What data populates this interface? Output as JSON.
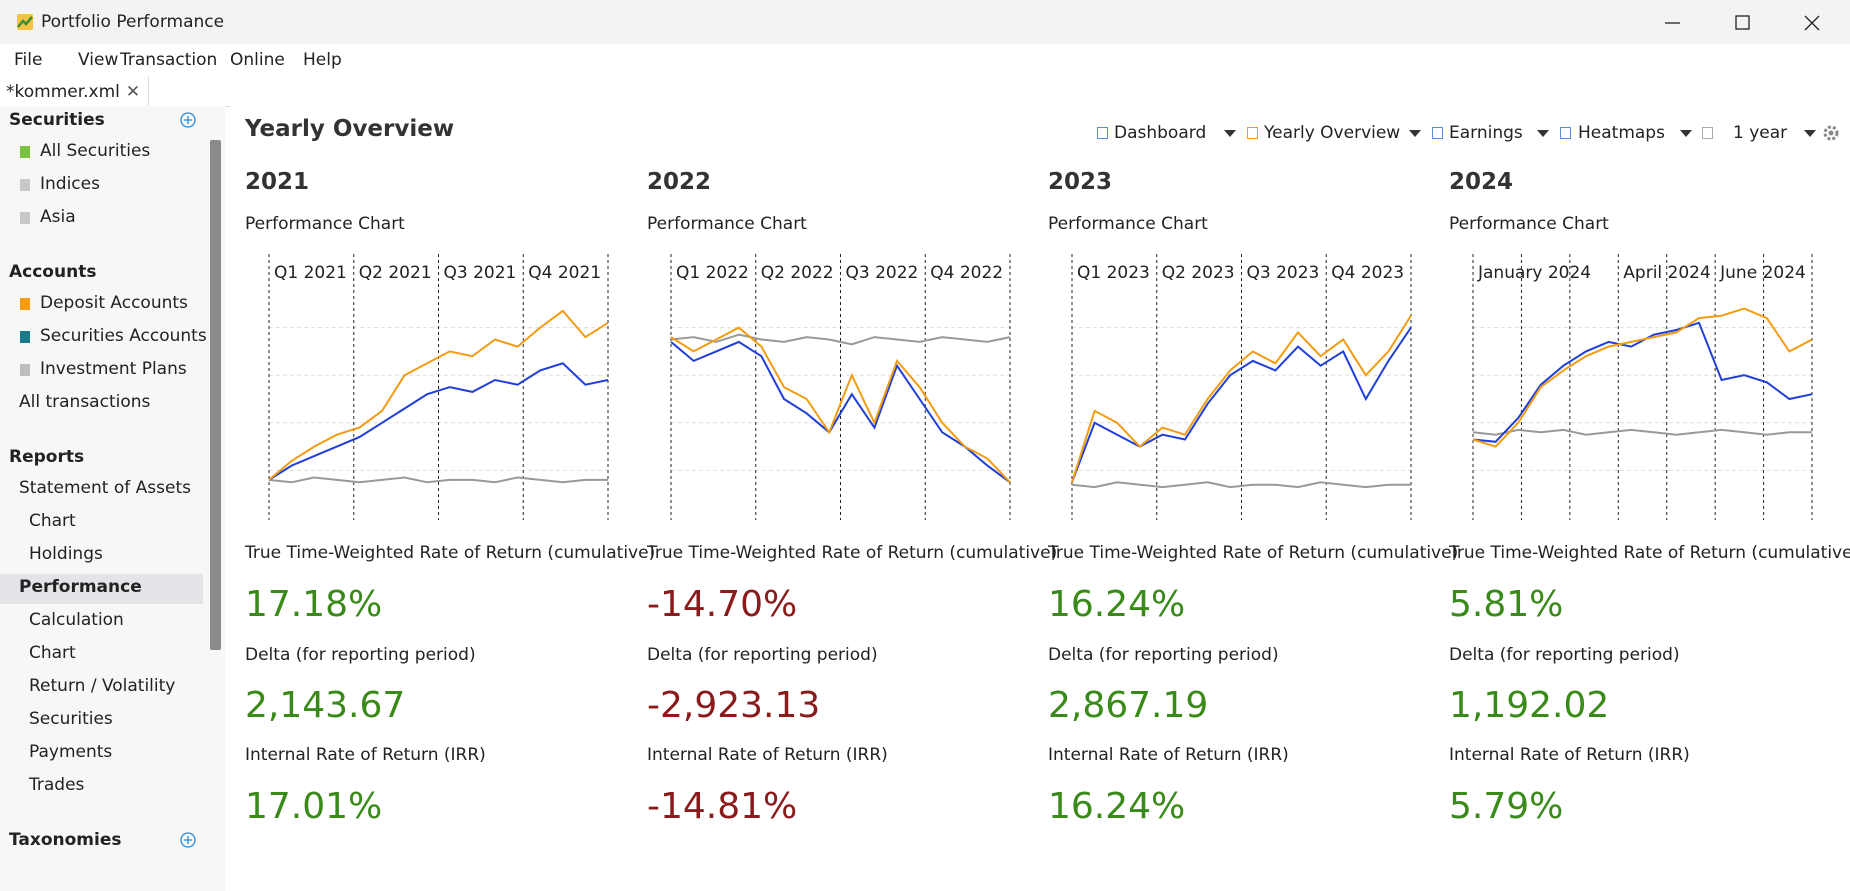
{
  "window": {
    "title": "Portfolio Performance"
  },
  "menu": [
    "File",
    "View",
    "Transaction",
    "Online",
    "Help"
  ],
  "tab": "*kommer.xml",
  "sidebar": {
    "sections": [
      {
        "title": "Securities",
        "add": true,
        "items": [
          {
            "label": "All Securities",
            "icon_color": "#7cc242"
          },
          {
            "label": "Indices",
            "icon_color": "#c8c8c8"
          },
          {
            "label": "Asia",
            "icon_color": "#c8c8c8"
          }
        ]
      },
      {
        "title": "Accounts",
        "items": [
          {
            "label": "Deposit Accounts",
            "icon_color": "#f39c12"
          },
          {
            "label": "Securities Accounts",
            "icon_color": "#1a7a8a"
          },
          {
            "label": "Investment Plans",
            "icon_color": "#bdbdbd"
          },
          {
            "label": "All transactions"
          }
        ]
      },
      {
        "title": "Reports",
        "items": [
          {
            "label": "Statement of Assets",
            "children": [
              "Chart",
              "Holdings"
            ]
          },
          {
            "label": "Performance",
            "selected": true,
            "children": [
              "Calculation",
              "Chart",
              "Return / Volatility",
              "Securities",
              "Payments",
              "Trades"
            ]
          }
        ]
      },
      {
        "title": "Taxonomies",
        "add": true,
        "items": []
      }
    ]
  },
  "page": {
    "title": "Yearly Overview",
    "toolbar": [
      "Dashboard",
      "Yearly Overview",
      "Earnings",
      "Heatmaps",
      "1 year"
    ]
  },
  "years": [
    {
      "year": "2021",
      "chart_title": "Performance Chart",
      "periods": [
        "Q1 2021",
        "Q2 2021",
        "Q3 2021",
        "Q4 2021"
      ],
      "ylim": [
        0,
        100
      ],
      "series": [
        {
          "color": "#f39c12",
          "values": [
            16,
            24,
            30,
            35,
            38,
            45,
            60,
            65,
            70,
            68,
            75,
            72,
            80,
            87,
            76,
            82
          ]
        },
        {
          "color": "#1f3fd8",
          "values": [
            16,
            22,
            26,
            30,
            34,
            40,
            46,
            52,
            55,
            53,
            58,
            56,
            62,
            65,
            56,
            58
          ]
        },
        {
          "color": "#999999",
          "values": [
            16,
            15,
            17,
            16,
            15,
            16,
            17,
            15,
            16,
            16,
            15,
            17,
            16,
            15,
            16,
            16
          ]
        }
      ],
      "metrics": [
        {
          "label": "True Time-Weighted Rate of Return (cumulative)",
          "value": "17.18%"
        },
        {
          "label": "Delta (for reporting period)",
          "value": "2,143.67"
        },
        {
          "label": "Internal Rate of Return (IRR)",
          "value": "17.01%"
        }
      ]
    },
    {
      "year": "2022",
      "chart_title": "Performance Chart",
      "periods": [
        "Q1 2022",
        "Q2 2022",
        "Q3 2022",
        "Q4 2022"
      ],
      "ylim": [
        0,
        100
      ],
      "series": [
        {
          "color": "#f39c12",
          "values": [
            76,
            70,
            75,
            80,
            72,
            55,
            50,
            36,
            60,
            40,
            66,
            55,
            40,
            30,
            25,
            15
          ]
        },
        {
          "color": "#1f3fd8",
          "values": [
            74,
            66,
            70,
            74,
            68,
            50,
            44,
            36,
            52,
            38,
            64,
            50,
            36,
            30,
            22,
            15
          ]
        },
        {
          "color": "#999999",
          "values": [
            75,
            76,
            74,
            77,
            75,
            74,
            76,
            75,
            73,
            76,
            75,
            74,
            76,
            75,
            74,
            76
          ]
        }
      ],
      "metrics": [
        {
          "label": "True Time-Weighted Rate of Return (cumulative)",
          "value": "-14.70%"
        },
        {
          "label": "Delta (for reporting period)",
          "value": "-2,923.13"
        },
        {
          "label": "Internal Rate of Return (IRR)",
          "value": "-14.81%"
        }
      ]
    },
    {
      "year": "2023",
      "chart_title": "Performance Chart",
      "periods": [
        "Q1 2023",
        "Q2 2023",
        "Q3 2023",
        "Q4 2023"
      ],
      "ylim": [
        0,
        100
      ],
      "series": [
        {
          "color": "#f39c12",
          "values": [
            15,
            45,
            40,
            30,
            38,
            35,
            50,
            62,
            70,
            65,
            78,
            68,
            75,
            60,
            70,
            85
          ]
        },
        {
          "color": "#1f3fd8",
          "values": [
            15,
            40,
            35,
            30,
            35,
            33,
            48,
            60,
            66,
            62,
            72,
            64,
            70,
            50,
            66,
            80
          ]
        },
        {
          "color": "#999999",
          "values": [
            14,
            13,
            15,
            14,
            13,
            14,
            15,
            13,
            14,
            14,
            13,
            15,
            14,
            13,
            14,
            14
          ]
        }
      ],
      "metrics": [
        {
          "label": "True Time-Weighted Rate of Return (cumulative)",
          "value": "16.24%"
        },
        {
          "label": "Delta (for reporting period)",
          "value": "2,867.19"
        },
        {
          "label": "Internal Rate of Return (IRR)",
          "value": "16.24%"
        }
      ]
    },
    {
      "year": "2024",
      "chart_title": "Performance Chart",
      "periods": [
        "January 2024",
        null,
        null,
        "April 2024",
        null,
        "June 2024",
        null
      ],
      "ylim": [
        0,
        100
      ],
      "series": [
        {
          "color": "#f39c12",
          "values": [
            33,
            30,
            40,
            55,
            62,
            68,
            72,
            74,
            76,
            78,
            84,
            85,
            88,
            84,
            70,
            75
          ]
        },
        {
          "color": "#1f3fd8",
          "values": [
            33,
            32,
            42,
            56,
            64,
            70,
            74,
            72,
            77,
            79,
            82,
            58,
            60,
            57,
            50,
            52
          ]
        },
        {
          "color": "#999999",
          "values": [
            36,
            35,
            37,
            36,
            37,
            35,
            36,
            37,
            36,
            35,
            36,
            37,
            36,
            35,
            36,
            36
          ]
        }
      ],
      "metrics": [
        {
          "label": "True Time-Weighted Rate of Return (cumulative)",
          "value": "5.81%"
        },
        {
          "label": "Delta (for reporting period)",
          "value": "1,192.02"
        },
        {
          "label": "Internal Rate of Return (IRR)",
          "value": "5.79%"
        }
      ]
    }
  ]
}
